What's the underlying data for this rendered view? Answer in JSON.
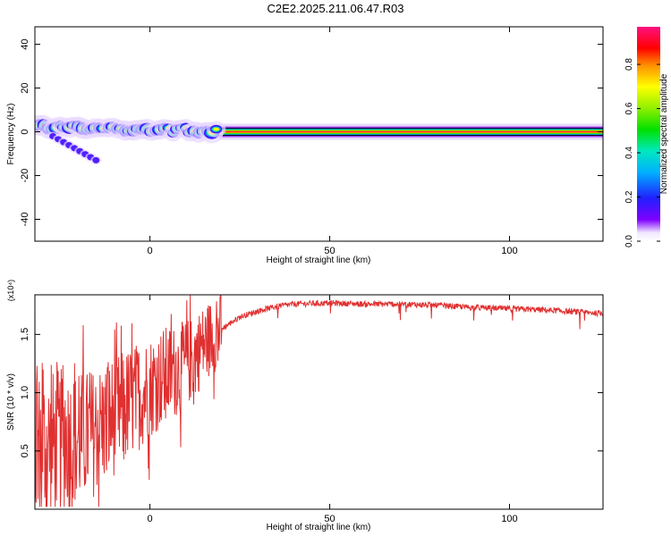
{
  "title": "C2E2.2025.211.06.47.R03",
  "chart_data": [
    {
      "type": "heatmap",
      "xlabel": "Height of straight line (km)",
      "ylabel": "Frequency (Hz)",
      "xlim": [
        -32,
        126
      ],
      "ylim": [
        -50,
        48
      ],
      "x_ticks": [
        0,
        50,
        100
      ],
      "y_ticks": [
        40,
        20,
        0,
        -20,
        -40
      ],
      "colorbar": {
        "label": "Normalized spectral amplitude",
        "range": [
          0,
          0.97
        ],
        "ticks": [
          "0.0",
          "0.2",
          "0.4",
          "0.6",
          "0.8"
        ]
      },
      "features": {
        "main_band_frequency_hz": 0,
        "noisy_region_x": [
          -32,
          19
        ],
        "stable_region_x": [
          19,
          126
        ],
        "secondary_branch": {
          "x": [
            -27,
            -15
          ],
          "frequency_hz": [
            -2,
            -13
          ]
        }
      }
    },
    {
      "type": "line",
      "xlabel": "Height of straight line (km)",
      "ylabel": "SNR (10 * v/v)",
      "y_multiplier": "(x10⁴)",
      "xlim": [
        -32,
        126
      ],
      "ylim": [
        0,
        1.84
      ],
      "x_ticks": [
        0,
        50,
        100
      ],
      "y_ticks": [
        "0.5",
        "1.0",
        "1.5"
      ],
      "line_color": "#e03030",
      "series": [
        {
          "x": [
            -32,
            -28,
            -24,
            -20,
            -16,
            -12,
            -8,
            -4,
            0,
            4,
            8,
            12,
            16,
            18,
            20,
            25,
            30,
            35,
            40,
            50,
            60,
            70,
            80,
            90,
            100,
            110,
            120,
            126
          ],
          "y": [
            0.55,
            0.55,
            0.6,
            0.6,
            0.65,
            0.75,
            0.85,
            0.95,
            1.05,
            1.15,
            1.2,
            1.3,
            1.45,
            1.5,
            1.55,
            1.65,
            1.7,
            1.74,
            1.76,
            1.77,
            1.76,
            1.76,
            1.75,
            1.73,
            1.72,
            1.71,
            1.69,
            1.68
          ]
        }
      ]
    }
  ]
}
